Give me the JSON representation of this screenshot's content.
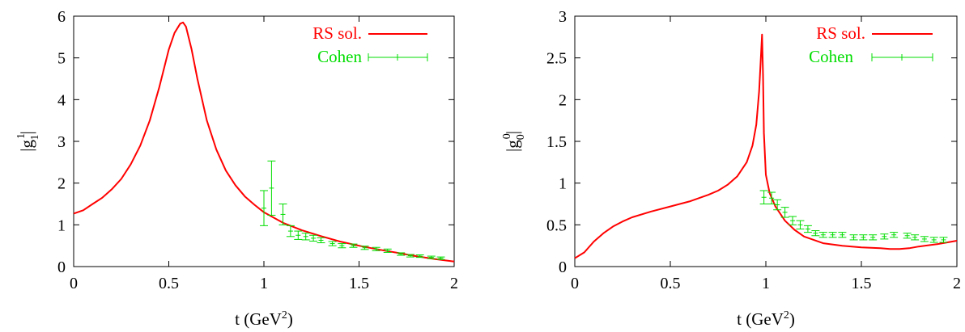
{
  "colors": {
    "rs": "#ff0000",
    "cohen": "#00dd00",
    "axes": "#000000"
  },
  "chart_data": [
    {
      "type": "line",
      "xlim": [
        0,
        2
      ],
      "ylim": [
        0,
        6
      ],
      "xticks": [
        "0",
        "0.5",
        "1",
        "1.5",
        "2"
      ],
      "yticks": [
        "0",
        "1",
        "2",
        "3",
        "4",
        "5",
        "6"
      ],
      "xlabel": {
        "main": "t (GeV",
        "sup": "2",
        "close": ")"
      },
      "ylabel": {
        "pre": "|g",
        "sup": "1",
        "sub": "1",
        "post": "|"
      },
      "legend": [
        "RS sol.",
        "Cohen"
      ],
      "series": [
        {
          "name": "RS sol.",
          "x": [
            0,
            0.05,
            0.1,
            0.15,
            0.2,
            0.25,
            0.3,
            0.35,
            0.4,
            0.45,
            0.5,
            0.53,
            0.56,
            0.575,
            0.59,
            0.62,
            0.65,
            0.7,
            0.75,
            0.8,
            0.85,
            0.9,
            0.95,
            1.0,
            1.1,
            1.2,
            1.3,
            1.4,
            1.5,
            1.6,
            1.7,
            1.8,
            1.9,
            2.0
          ],
          "y": [
            1.27,
            1.35,
            1.5,
            1.65,
            1.85,
            2.1,
            2.45,
            2.9,
            3.5,
            4.3,
            5.2,
            5.6,
            5.82,
            5.85,
            5.75,
            5.2,
            4.5,
            3.5,
            2.8,
            2.3,
            1.95,
            1.68,
            1.48,
            1.3,
            1.05,
            0.87,
            0.73,
            0.6,
            0.5,
            0.41,
            0.33,
            0.25,
            0.18,
            0.12
          ]
        },
        {
          "name": "Cohen",
          "x": [
            1.0,
            1.04,
            1.1,
            1.14,
            1.18,
            1.22,
            1.26,
            1.3,
            1.36,
            1.41,
            1.47,
            1.53,
            1.59,
            1.65,
            1.72,
            1.77,
            1.82,
            1.88,
            1.93
          ],
          "y": [
            1.4,
            1.88,
            1.25,
            0.85,
            0.75,
            0.72,
            0.68,
            0.63,
            0.55,
            0.5,
            0.5,
            0.45,
            0.42,
            0.38,
            0.3,
            0.26,
            0.25,
            0.22,
            0.2
          ],
          "err": [
            0.42,
            0.65,
            0.25,
            0.13,
            0.1,
            0.08,
            0.07,
            0.06,
            0.05,
            0.05,
            0.04,
            0.04,
            0.04,
            0.04,
            0.03,
            0.03,
            0.03,
            0.03,
            0.03
          ]
        }
      ]
    },
    {
      "type": "line",
      "xlim": [
        0,
        2
      ],
      "ylim": [
        0,
        3
      ],
      "xticks": [
        "0",
        "0.5",
        "1",
        "1.5",
        "2"
      ],
      "yticks": [
        "0",
        "0.5",
        "1",
        "1.5",
        "2",
        "2.5",
        "3"
      ],
      "xlabel": {
        "main": "t (GeV",
        "sup": "2",
        "close": ")"
      },
      "ylabel": {
        "pre": "|g",
        "sup": "0",
        "sub": "0",
        "post": "|"
      },
      "legend": [
        "RS sol.",
        "Cohen"
      ],
      "series": [
        {
          "name": "RS sol.",
          "x": [
            0,
            0.05,
            0.1,
            0.15,
            0.2,
            0.25,
            0.3,
            0.4,
            0.5,
            0.6,
            0.7,
            0.75,
            0.8,
            0.85,
            0.9,
            0.93,
            0.95,
            0.965,
            0.975,
            0.98,
            0.985,
            0.99,
            1.0,
            1.02,
            1.05,
            1.1,
            1.15,
            1.2,
            1.3,
            1.4,
            1.5,
            1.6,
            1.65,
            1.7,
            1.75,
            1.8,
            1.9,
            2.0
          ],
          "y": [
            0.1,
            0.17,
            0.3,
            0.4,
            0.48,
            0.54,
            0.59,
            0.66,
            0.72,
            0.78,
            0.86,
            0.91,
            0.98,
            1.08,
            1.25,
            1.45,
            1.7,
            2.1,
            2.55,
            2.78,
            2.3,
            1.6,
            1.1,
            0.88,
            0.72,
            0.55,
            0.44,
            0.36,
            0.28,
            0.25,
            0.23,
            0.22,
            0.21,
            0.21,
            0.22,
            0.24,
            0.27,
            0.31
          ]
        },
        {
          "name": "Cohen",
          "x": [
            0.99,
            1.03,
            1.06,
            1.1,
            1.14,
            1.18,
            1.22,
            1.26,
            1.3,
            1.35,
            1.4,
            1.46,
            1.51,
            1.56,
            1.62,
            1.67,
            1.74,
            1.78,
            1.83,
            1.88,
            1.93
          ],
          "y": [
            0.83,
            0.82,
            0.74,
            0.65,
            0.55,
            0.5,
            0.45,
            0.4,
            0.38,
            0.38,
            0.38,
            0.35,
            0.35,
            0.35,
            0.36,
            0.38,
            0.37,
            0.35,
            0.33,
            0.32,
            0.32
          ],
          "err": [
            0.08,
            0.07,
            0.06,
            0.06,
            0.05,
            0.05,
            0.04,
            0.03,
            0.03,
            0.03,
            0.03,
            0.03,
            0.03,
            0.03,
            0.03,
            0.03,
            0.03,
            0.03,
            0.03,
            0.03,
            0.03
          ]
        }
      ]
    }
  ]
}
